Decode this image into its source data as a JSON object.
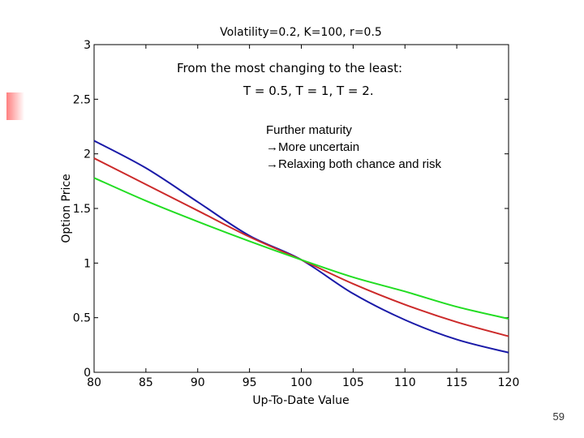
{
  "slide_number": "59",
  "chart_data": {
    "type": "line",
    "title": "Volatility=0.2, K=100, r=0.5",
    "xlabel": "Up-To-Date Value",
    "ylabel": "Option Price",
    "xlim": [
      80,
      120
    ],
    "ylim": [
      0,
      3
    ],
    "xticks": [
      80,
      85,
      90,
      95,
      100,
      105,
      110,
      115,
      120
    ],
    "yticks": [
      0,
      0.5,
      1,
      1.5,
      2,
      2.5,
      3
    ],
    "ytick_labels": [
      "0",
      "0.5",
      "1",
      "1.5",
      "2",
      "2.5",
      "3"
    ],
    "grid": false,
    "legend": null,
    "annotations": [
      {
        "id": "ann1",
        "lines": [
          "From the most changing to the least:"
        ]
      },
      {
        "id": "ann2",
        "lines": [
          "T = 0.5,  T = 1,  T = 2."
        ]
      },
      {
        "id": "ann3",
        "lines": [
          "Further maturity",
          "→More uncertain",
          "→Relaxing both chance and risk"
        ]
      }
    ],
    "series": [
      {
        "color": "#1a1aa8",
        "x": [
          80,
          85,
          90,
          95,
          100,
          105,
          110,
          115,
          120
        ],
        "y": [
          2.12,
          1.87,
          1.56,
          1.25,
          1.03,
          0.72,
          0.48,
          0.3,
          0.18
        ]
      },
      {
        "color": "#cc2a2a",
        "x": [
          80,
          85,
          90,
          95,
          100,
          105,
          110,
          115,
          120
        ],
        "y": [
          1.96,
          1.72,
          1.48,
          1.24,
          1.03,
          0.81,
          0.62,
          0.46,
          0.33
        ]
      },
      {
        "color": "#22dd22",
        "x": [
          80,
          85,
          90,
          95,
          100,
          105,
          110,
          115,
          120
        ],
        "y": [
          1.78,
          1.57,
          1.38,
          1.2,
          1.03,
          0.87,
          0.74,
          0.6,
          0.49
        ]
      }
    ]
  }
}
